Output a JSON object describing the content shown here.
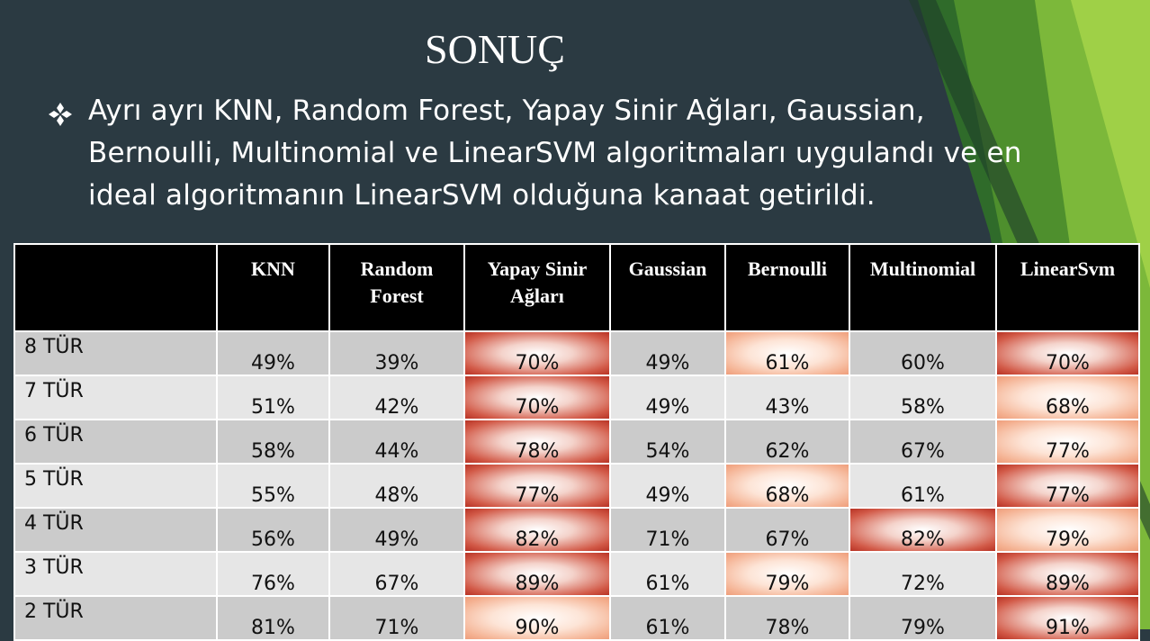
{
  "slide": {
    "title": "SONUÇ",
    "bullet_lines": [
      "Ayrı ayrı KNN, Random Forest, Yapay Sinir Ağları, Gaussian,",
      "Bernoulli, Multinomial ve LinearSVM algoritmaları uygulandı ve en",
      "ideal algoritmanın LinearSVM olduğuna kanaat getirildi."
    ],
    "bullet_icon": "diamond-bullet-icon",
    "colors": {
      "background": "#2b3a42",
      "accent_green": "#8cc63f",
      "highlight_dark": "#c0392b",
      "highlight_light": "#f4a582"
    }
  },
  "table": {
    "headers": [
      "",
      "KNN",
      "Random Forest",
      "Yapay Sinir Ağları",
      "Gaussian",
      "Bernoulli",
      "Multinomial",
      "LinearSvm"
    ],
    "header_lines": [
      [
        ""
      ],
      [
        "KNN"
      ],
      [
        "Random",
        "Forest"
      ],
      [
        "Yapay Sinir",
        "Ağları"
      ],
      [
        "Gaussian"
      ],
      [
        "Bernoulli"
      ],
      [
        "Multinomial"
      ],
      [
        "LinearSvm"
      ]
    ],
    "rows": [
      {
        "label": "8 TÜR",
        "values": [
          "49%",
          "39%",
          "70%",
          "49%",
          "61%",
          "60%",
          "70%"
        ],
        "highlight": [
          "",
          "",
          "dark",
          "",
          "light",
          "",
          "dark"
        ]
      },
      {
        "label": "7 TÜR",
        "values": [
          "51%",
          "42%",
          "70%",
          "49%",
          "43%",
          "58%",
          "68%"
        ],
        "highlight": [
          "",
          "",
          "dark",
          "",
          "",
          "",
          "light"
        ]
      },
      {
        "label": "6 TÜR",
        "values": [
          "58%",
          "44%",
          "78%",
          "54%",
          "62%",
          "67%",
          "77%"
        ],
        "highlight": [
          "",
          "",
          "dark",
          "",
          "",
          "",
          "light"
        ]
      },
      {
        "label": "5 TÜR",
        "values": [
          "55%",
          "48%",
          "77%",
          "49%",
          "68%",
          "61%",
          "77%"
        ],
        "highlight": [
          "",
          "",
          "dark",
          "",
          "light",
          "",
          "dark"
        ]
      },
      {
        "label": "4 TÜR",
        "values": [
          "56%",
          "49%",
          "82%",
          "71%",
          "67%",
          "82%",
          "79%"
        ],
        "highlight": [
          "",
          "",
          "dark",
          "",
          "",
          "dark",
          "light"
        ]
      },
      {
        "label": "3 TÜR",
        "values": [
          "76%",
          "67%",
          "89%",
          "61%",
          "79%",
          "72%",
          "89%"
        ],
        "highlight": [
          "",
          "",
          "dark",
          "",
          "light",
          "",
          "dark"
        ]
      },
      {
        "label": "2 TÜR",
        "values": [
          "81%",
          "71%",
          "90%",
          "61%",
          "78%",
          "79%",
          "91%"
        ],
        "highlight": [
          "",
          "",
          "light",
          "",
          "",
          "",
          "dark"
        ]
      }
    ]
  }
}
